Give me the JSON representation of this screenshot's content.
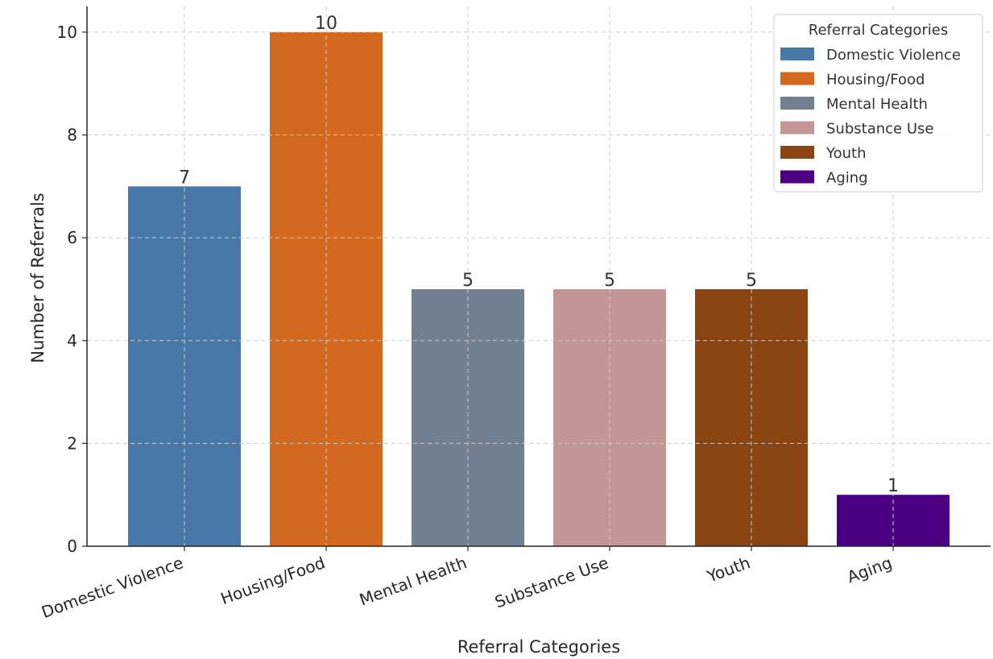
{
  "chart_data": {
    "type": "bar",
    "categories": [
      "Domestic Violence",
      "Housing/Food",
      "Mental Health",
      "Substance Use",
      "Youth",
      "Aging"
    ],
    "values": [
      7,
      10,
      5,
      5,
      5,
      1
    ],
    "data_labels": [
      "7",
      "10",
      "5",
      "5",
      "5",
      "1"
    ],
    "colors": [
      "#4878a8",
      "#d2691e",
      "#708090",
      "#c39597",
      "#8b4513",
      "#4b0082"
    ],
    "title": "",
    "xlabel": "Referral Categories",
    "ylabel": "Number of Referrals",
    "ylim": [
      0,
      10.5
    ],
    "yticks": [
      0,
      2,
      4,
      6,
      8,
      10
    ],
    "ytick_labels": [
      "0",
      "2",
      "4",
      "6",
      "8",
      "10"
    ],
    "grid": true,
    "legend": {
      "title": "Referral Categories",
      "placement": "top-right",
      "entries": [
        "Domestic Violence",
        "Housing/Food",
        "Mental Health",
        "Substance Use",
        "Youth",
        "Aging"
      ]
    }
  }
}
